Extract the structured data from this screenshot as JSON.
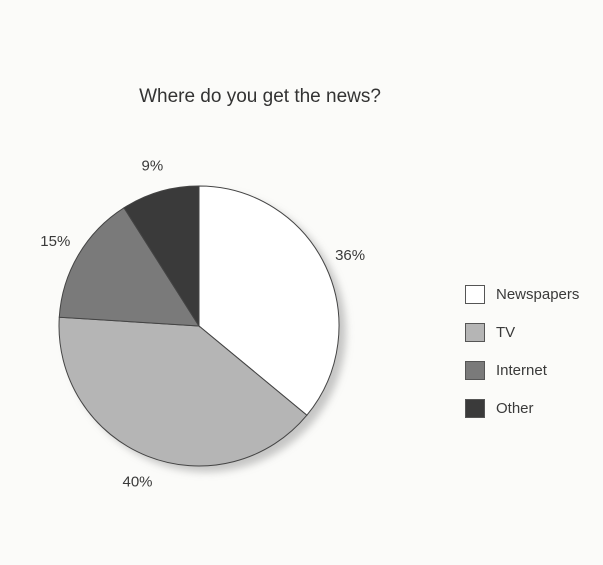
{
  "chart_data": {
    "type": "pie",
    "title": "Where do you get the news?",
    "legend_position": "right",
    "slices": [
      {
        "name": "Newspapers",
        "value": 36,
        "label": "36%",
        "color": "#ffffff"
      },
      {
        "name": "TV",
        "value": 40,
        "label": "40%",
        "color": "#b5b5b5"
      },
      {
        "name": "Internet",
        "value": 15,
        "label": "15%",
        "color": "#7a7a7a"
      },
      {
        "name": "Other",
        "value": 9,
        "label": "9%",
        "color": "#3a3a3a"
      }
    ]
  }
}
